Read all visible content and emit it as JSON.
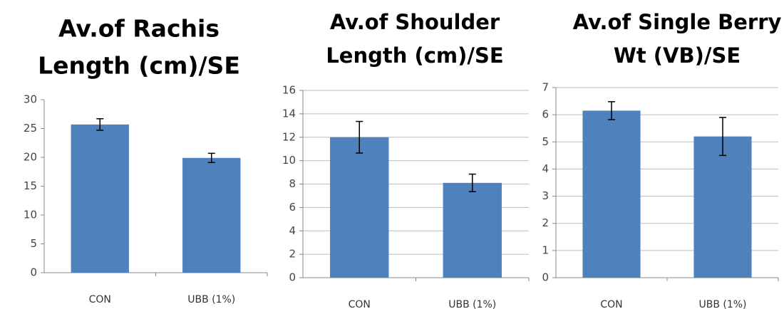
{
  "chart_data": [
    {
      "type": "bar",
      "title": [
        "Av.of Rachis",
        "Length (cm)/SE"
      ],
      "categories": [
        "CON",
        "UBB (1%)"
      ],
      "values": [
        25.7,
        19.9
      ],
      "errors": [
        1.0,
        0.8
      ],
      "color": "#4f81bd",
      "ylim": [
        0,
        30
      ],
      "yticks": [
        0,
        5,
        10,
        15,
        20,
        25,
        30
      ],
      "grid": false
    },
    {
      "type": "bar",
      "title": [
        "Av.of Shoulder",
        "Length (cm)/SE"
      ],
      "categories": [
        "CON",
        "UBB (1%)"
      ],
      "values": [
        12.0,
        8.1
      ],
      "errors": [
        1.35,
        0.75
      ],
      "color": "#4f81bd",
      "ylim": [
        0,
        16
      ],
      "yticks": [
        0,
        2,
        4,
        6,
        8,
        10,
        12,
        14,
        16
      ],
      "grid": true
    },
    {
      "type": "bar",
      "title": [
        "Av.of Single Berry",
        "Wt (VB)/SE"
      ],
      "categories": [
        "CON",
        "UBB (1%)"
      ],
      "values": [
        6.15,
        5.2
      ],
      "errors": [
        0.33,
        0.7
      ],
      "color": "#4f81bd",
      "ylim": [
        0,
        7
      ],
      "yticks": [
        0,
        1,
        2,
        3,
        4,
        5,
        6,
        7
      ],
      "grid": true
    }
  ]
}
